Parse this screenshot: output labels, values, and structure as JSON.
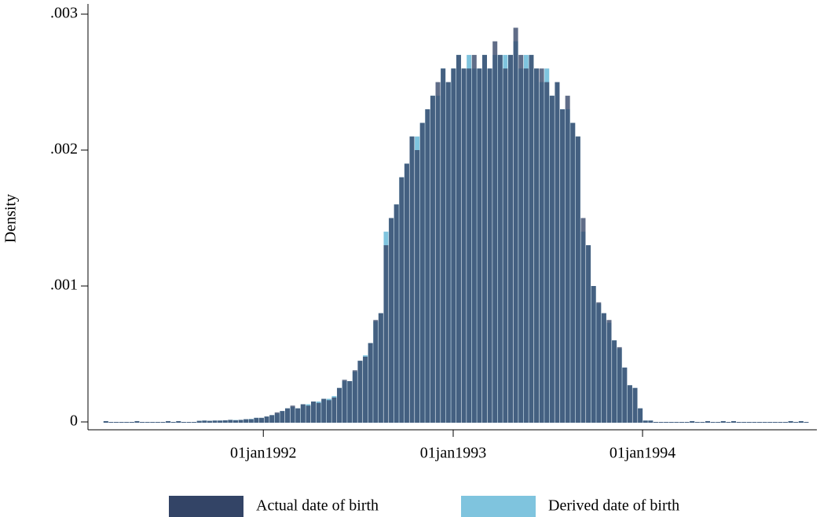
{
  "chart_data": {
    "type": "histogram",
    "ylabel": "Density",
    "bins": [
      11380,
      11390,
      11400,
      11410,
      11420,
      11430,
      11440,
      11450,
      11460,
      11470,
      11480,
      11490,
      11500,
      11510,
      11520,
      11530,
      11540,
      11550,
      11560,
      11570,
      11580,
      11590,
      11600,
      11610,
      11620,
      11630,
      11640,
      11650,
      11660,
      11670,
      11680,
      11690,
      11700,
      11710,
      11720,
      11730,
      11740,
      11750,
      11760,
      11770,
      11780,
      11790,
      11800,
      11810,
      11820,
      11830,
      11840,
      11850,
      11860,
      11870,
      11880,
      11890,
      11900,
      11910,
      11920,
      11930,
      11940,
      11950,
      11960,
      11970,
      11980,
      11990,
      12000,
      12010,
      12020,
      12030,
      12040,
      12050,
      12060,
      12070,
      12080,
      12090,
      12100,
      12110,
      12120,
      12130,
      12140,
      12150,
      12160,
      12170,
      12180,
      12190,
      12200,
      12210,
      12220,
      12230,
      12240,
      12250,
      12260,
      12270,
      12280,
      12290,
      12300,
      12310,
      12320,
      12330,
      12340,
      12350,
      12360,
      12370,
      12380,
      12390,
      12400,
      12410,
      12420,
      12430,
      12440,
      12450,
      12460,
      12470,
      12480,
      12490,
      12500,
      12510,
      12520,
      12530,
      12540,
      12550,
      12560,
      12570,
      12580,
      12590,
      12600,
      12610,
      12620,
      12630,
      12640,
      12650,
      12660,
      12670,
      12680,
      12690,
      12700,
      12710,
      12720,
      12730,
      12740
    ],
    "series": [
      {
        "name": "Actual date of birth",
        "color": "#334466",
        "values": [
          6e-06,
          0,
          0,
          0,
          0,
          0,
          6e-06,
          0,
          0,
          0,
          0,
          0,
          6e-06,
          0,
          6e-06,
          0,
          0,
          0,
          8e-06,
          1e-05,
          8e-06,
          1e-05,
          1e-05,
          1.2e-05,
          1.5e-05,
          1.2e-05,
          1.5e-05,
          2e-05,
          2e-05,
          3e-05,
          3e-05,
          4e-05,
          5e-05,
          7e-05,
          8e-05,
          0.0001,
          0.00012,
          0.0001,
          0.00013,
          0.00012,
          0.00015,
          0.00014,
          0.00017,
          0.00016,
          0.00018,
          0.00025,
          0.00031,
          0.0003,
          0.00038,
          0.00045,
          0.00048,
          0.00058,
          0.00075,
          0.0008,
          0.0013,
          0.0015,
          0.0016,
          0.0018,
          0.0019,
          0.0021,
          0.002,
          0.0022,
          0.0023,
          0.0024,
          0.0025,
          0.0026,
          0.0025,
          0.0026,
          0.0027,
          0.0026,
          0.0026,
          0.0027,
          0.0026,
          0.0027,
          0.0026,
          0.0028,
          0.0027,
          0.0026,
          0.0027,
          0.0029,
          0.0027,
          0.0026,
          0.0027,
          0.0026,
          0.0026,
          0.0025,
          0.0024,
          0.0025,
          0.0023,
          0.0024,
          0.0022,
          0.0021,
          0.0015,
          0.0013,
          0.001,
          0.00088,
          0.0008,
          0.00075,
          0.0006,
          0.00055,
          0.0004,
          0.00027,
          0.00025,
          0.0001,
          1e-05,
          1e-05,
          0,
          0,
          0,
          0,
          0,
          0,
          0,
          6e-06,
          0,
          0,
          6e-06,
          0,
          0,
          6e-06,
          0,
          6e-06,
          0,
          0,
          0,
          0,
          0,
          0,
          0,
          0,
          0,
          0,
          6e-06,
          0,
          6e-06,
          0
        ]
      },
      {
        "name": "Derived date of birth",
        "color": "#7fc4de",
        "values": [
          6e-06,
          0,
          0,
          0,
          0,
          0,
          6e-06,
          0,
          0,
          0,
          0,
          0,
          6e-06,
          0,
          6e-06,
          0,
          0,
          0,
          8e-06,
          1e-05,
          8e-06,
          1e-05,
          1e-05,
          1.2e-05,
          1.5e-05,
          1.4e-05,
          1.5e-05,
          2e-05,
          2.2e-05,
          3e-05,
          3e-05,
          4e-05,
          5e-05,
          6e-05,
          8e-05,
          0.0001,
          0.00011,
          0.0001,
          0.00013,
          0.00013,
          0.00015,
          0.00015,
          0.00017,
          0.00017,
          0.00019,
          0.00025,
          0.0003,
          0.0003,
          0.00037,
          0.00045,
          0.00049,
          0.00058,
          0.00074,
          0.0008,
          0.0014,
          0.0015,
          0.0016,
          0.0018,
          0.0019,
          0.0021,
          0.0021,
          0.0022,
          0.0023,
          0.0024,
          0.0024,
          0.0026,
          0.0025,
          0.0026,
          0.0027,
          0.0026,
          0.0027,
          0.0026,
          0.0026,
          0.0027,
          0.0026,
          0.0027,
          0.0027,
          0.0027,
          0.0027,
          0.0028,
          0.0026,
          0.0027,
          0.0027,
          0.0026,
          0.0025,
          0.0026,
          0.0024,
          0.0025,
          0.0023,
          0.0023,
          0.0022,
          0.0021,
          0.0014,
          0.0013,
          0.001,
          0.00087,
          0.0008,
          0.00073,
          0.0006,
          0.00054,
          0.0004,
          0.00027,
          0.00025,
          0.0001,
          1e-05,
          1e-05,
          0,
          0,
          0,
          0,
          0,
          0,
          0,
          6e-06,
          0,
          0,
          6e-06,
          0,
          0,
          6e-06,
          0,
          6e-06,
          0,
          0,
          0,
          0,
          0,
          0,
          0,
          0,
          0,
          0,
          6e-06,
          0,
          6e-06,
          0
        ]
      }
    ],
    "xlim": [
      11350,
      12755
    ],
    "xticks": [
      {
        "value": 11688,
        "label": "01jan1992"
      },
      {
        "value": 12054,
        "label": "01jan1993"
      },
      {
        "value": 12419,
        "label": "01jan1994"
      }
    ],
    "ylim": [
      0,
      0.003
    ],
    "yticks": [
      0,
      {
        "value": 0.001,
        "label": ".001"
      },
      {
        "value": 0.002,
        "label": ".002"
      },
      {
        "value": 0.003,
        "label": ".003"
      }
    ],
    "grid": false
  }
}
